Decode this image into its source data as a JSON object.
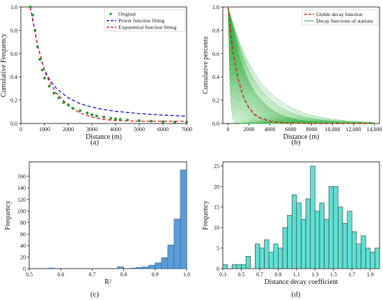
{
  "colors": {
    "original": "#2ca02c",
    "power": "#1f1fcc",
    "exponential": "#d62728",
    "station": "#3cb34a",
    "hist_c_fill": "#5b9bd5",
    "hist_c_edge": "#2e5f8f",
    "hist_d_fill": "#5ee0d2",
    "hist_d_edge": "#333333"
  },
  "chart_data": [
    {
      "id": "a",
      "type": "line",
      "panel_label": "(a)",
      "xlabel": "Distance (m)",
      "ylabel": "Cumulative Frequency",
      "xlim": [
        0,
        7000
      ],
      "ylim": [
        0,
        1.0
      ],
      "xticks": [
        0,
        1000,
        2000,
        3000,
        4000,
        5000,
        6000,
        7000
      ],
      "yticks": [
        0.0,
        0.2,
        0.4,
        0.6,
        0.8,
        1.0
      ],
      "legend": {
        "position": "top-right",
        "entries": [
          "Original",
          "Power function fitting",
          "Exponential function fitting"
        ]
      },
      "series": [
        {
          "name": "Original",
          "style": "markers",
          "x": [
            400,
            500,
            600,
            700,
            800,
            900,
            1000,
            1200,
            1400,
            1600,
            1800,
            2000,
            2200,
            2500,
            2800,
            3000,
            3200,
            3500,
            3800,
            4000,
            4200,
            4500,
            5000,
            5500,
            6000,
            6500,
            7000
          ],
          "y": [
            1.0,
            0.93,
            0.8,
            0.66,
            0.55,
            0.46,
            0.39,
            0.32,
            0.26,
            0.22,
            0.18,
            0.16,
            0.13,
            0.11,
            0.09,
            0.075,
            0.065,
            0.055,
            0.045,
            0.04,
            0.035,
            0.03,
            0.025,
            0.02,
            0.015,
            0.012,
            0.01
          ]
        },
        {
          "name": "Power function fitting",
          "style": "dashed",
          "x": [
            400,
            500,
            600,
            700,
            800,
            1000,
            1200,
            1500,
            2000,
            2500,
            3000,
            3500,
            4000,
            5000,
            6000,
            7000
          ],
          "y": [
            1.0,
            0.9,
            0.78,
            0.68,
            0.6,
            0.46,
            0.38,
            0.3,
            0.22,
            0.17,
            0.14,
            0.12,
            0.105,
            0.085,
            0.072,
            0.062
          ]
        },
        {
          "name": "Exponential function fitting",
          "style": "dashed",
          "x": [
            400,
            500,
            600,
            700,
            800,
            1000,
            1200,
            1500,
            2000,
            2500,
            3000,
            3500,
            4000,
            5000,
            6000,
            7000
          ],
          "y": [
            1.0,
            0.88,
            0.78,
            0.68,
            0.6,
            0.45,
            0.36,
            0.26,
            0.155,
            0.09,
            0.055,
            0.035,
            0.025,
            0.02,
            0.02,
            0.02
          ]
        }
      ]
    },
    {
      "id": "b",
      "type": "line",
      "panel_label": "(b)",
      "xlabel": "Distance (m)",
      "ylabel": "Cumulative percents",
      "xlim": [
        -500,
        14500
      ],
      "ylim": [
        0,
        1.0
      ],
      "xticks": [
        0,
        2000,
        4000,
        6000,
        8000,
        10000,
        12000,
        14000
      ],
      "xtick_labels": [
        "0",
        "2000",
        "4000",
        "6000",
        "8000",
        "10,000",
        "12,000",
        "14,000"
      ],
      "yticks": [
        0.0,
        0.2,
        0.4,
        0.6,
        0.8,
        1.0
      ],
      "legend": {
        "position": "top-right",
        "entries": [
          "Globle decay function",
          "Decay functions of stations"
        ]
      },
      "series": [
        {
          "name": "Globle decay function",
          "style": "dashed",
          "x": [
            0,
            250,
            500,
            750,
            1000,
            1500,
            2000,
            2500,
            3000,
            4000,
            5000,
            6000,
            8000,
            10000,
            14000
          ],
          "y": [
            1.0,
            0.78,
            0.6,
            0.47,
            0.37,
            0.22,
            0.135,
            0.08,
            0.05,
            0.018,
            0.007,
            0.003,
            0.0,
            0.0,
            0.0
          ]
        },
        {
          "name": "Decay functions of stations",
          "style": "family",
          "decay_scales_m": [
            150,
            200,
            250,
            300,
            350,
            400,
            450,
            500,
            550,
            600,
            650,
            700,
            750,
            800,
            850,
            900,
            950,
            1000,
            1050,
            1100,
            1150,
            1200,
            1250,
            1300,
            1350,
            1400,
            1450,
            1500,
            1550,
            1600,
            1650,
            1700,
            1750,
            1800,
            1850,
            1900,
            1950,
            2000,
            2100,
            2200,
            2300,
            2400,
            2500,
            2600,
            2800,
            3000
          ]
        }
      ]
    },
    {
      "id": "c",
      "type": "bar",
      "panel_label": "(c)",
      "xlabel": "R²",
      "ylabel": "Frequency",
      "xlim": [
        0.5,
        1.0
      ],
      "ylim": [
        0,
        185
      ],
      "xticks": [
        0.5,
        0.6,
        0.7,
        0.8,
        0.9,
        1.0
      ],
      "yticks": [
        0,
        20,
        40,
        60,
        80,
        100,
        120,
        140,
        160
      ],
      "bin_width": 0.02,
      "bin_starts": [
        0.56,
        0.78,
        0.82,
        0.84,
        0.86,
        0.88,
        0.9,
        0.92,
        0.94,
        0.96,
        0.98
      ],
      "values": [
        1,
        3,
        1,
        2,
        3,
        6,
        10,
        19,
        41,
        86,
        171
      ]
    },
    {
      "id": "d",
      "type": "bar",
      "panel_label": "(d)",
      "xlabel": "Distance decay coefficient",
      "ylabel": "Frequency",
      "xlim": [
        0.3,
        2.0
      ],
      "ylim": [
        0,
        26
      ],
      "xticks": [
        0.3,
        0.5,
        0.7,
        0.9,
        1.1,
        1.3,
        1.5,
        1.7,
        1.9
      ],
      "yticks": [
        0,
        5,
        10,
        15,
        20,
        25
      ],
      "bin_width": 0.05,
      "bin_starts": [
        0.3,
        0.35,
        0.4,
        0.45,
        0.5,
        0.55,
        0.6,
        0.65,
        0.7,
        0.75,
        0.8,
        0.85,
        0.9,
        0.95,
        1.0,
        1.05,
        1.1,
        1.15,
        1.2,
        1.25,
        1.3,
        1.35,
        1.4,
        1.45,
        1.5,
        1.55,
        1.6,
        1.65,
        1.7,
        1.75,
        1.8,
        1.85,
        1.9,
        1.95
      ],
      "values": [
        1,
        0,
        1,
        1,
        1,
        3,
        0,
        6,
        5,
        7,
        4,
        6,
        5,
        10,
        13,
        18,
        16,
        12,
        17,
        25,
        14,
        16,
        12,
        20,
        20,
        15,
        11,
        14,
        9,
        6,
        8,
        5,
        4,
        5
      ]
    }
  ]
}
